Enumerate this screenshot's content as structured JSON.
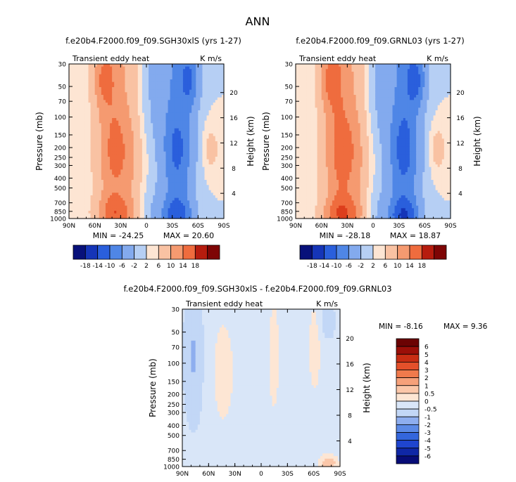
{
  "figure": {
    "title": "ANN"
  },
  "chart_data": [
    {
      "type": "heatmap",
      "title": "f.e20b4.F2000.f09_f09.SGH30xlS (yrs 1-27)",
      "subtitle_left": "Transient eddy heat",
      "subtitle_right": "K m/s",
      "xlabel": "",
      "ylabel": "Pressure (mb)",
      "ylabel_right": "Height (km)",
      "x_ticks": [
        "90N",
        "60N",
        "30N",
        "0",
        "30S",
        "60S",
        "90S"
      ],
      "y_ticks": [
        "30",
        "50",
        "70",
        "100",
        "150",
        "200",
        "250",
        "300",
        "400",
        "500",
        "700",
        "850",
        "1000"
      ],
      "y_right_ticks": [
        "20",
        "16",
        "12",
        "8",
        "4"
      ],
      "min_label": "MIN = -24.25",
      "max_label": "MAX = 20.60",
      "min": -24.25,
      "max": 20.6,
      "colorbar": {
        "orientation": "horizontal",
        "labels": [
          "-18",
          "-14",
          "-10",
          "-6",
          "-2",
          "2",
          "6",
          "10",
          "14",
          "18"
        ]
      }
    },
    {
      "type": "heatmap",
      "title": "f.e20b4.F2000.f09_f09.GRNL03 (yrs 1-27)",
      "subtitle_left": "Transient eddy heat",
      "subtitle_right": "K m/s",
      "xlabel": "",
      "ylabel": "Pressure (mb)",
      "ylabel_right": "Height (km)",
      "x_ticks": [
        "90N",
        "60N",
        "30N",
        "0",
        "30S",
        "60S",
        "90S"
      ],
      "y_ticks": [
        "30",
        "50",
        "70",
        "100",
        "150",
        "200",
        "250",
        "300",
        "400",
        "500",
        "700",
        "850",
        "1000"
      ],
      "y_right_ticks": [
        "20",
        "16",
        "12",
        "8",
        "4"
      ],
      "min_label": "MIN = -28.18",
      "max_label": "MAX = 18.87",
      "min": -28.18,
      "max": 18.87,
      "colorbar": {
        "orientation": "horizontal",
        "labels": [
          "-18",
          "-14",
          "-10",
          "-6",
          "-2",
          "2",
          "6",
          "10",
          "14",
          "18"
        ]
      }
    },
    {
      "type": "heatmap",
      "title": "f.e20b4.F2000.f09_f09.SGH30xlS - f.e20b4.F2000.f09_f09.GRNL03",
      "subtitle_left": "Transient eddy heat",
      "subtitle_right": "K m/s",
      "xlabel": "",
      "ylabel": "Pressure (mb)",
      "ylabel_right": "Height (km)",
      "x_ticks": [
        "90N",
        "60N",
        "30N",
        "0",
        "30S",
        "60S",
        "90S"
      ],
      "y_ticks": [
        "30",
        "50",
        "70",
        "100",
        "150",
        "200",
        "250",
        "300",
        "400",
        "500",
        "700",
        "850",
        "1000"
      ],
      "y_right_ticks": [
        "20",
        "16",
        "12",
        "8",
        "4"
      ],
      "min_label": "MIN = -8.16",
      "max_label": "MAX = 9.36",
      "min": -8.16,
      "max": 9.36,
      "colorbar": {
        "orientation": "vertical",
        "labels": [
          "6",
          "5",
          "4",
          "3",
          "2",
          "1",
          "0.5",
          "0",
          "-0.5",
          "-1",
          "-2",
          "-3",
          "-4",
          "-5",
          "-6"
        ]
      }
    }
  ],
  "colors": {
    "scale_12": [
      "#08117a",
      "#1535b8",
      "#2a5fdc",
      "#4f86e6",
      "#83aaee",
      "#b6cff4",
      "#d8e6f8",
      "#fde5d3",
      "#f9c2a3",
      "#f59a70",
      "#ef6c3e",
      "#dd3e1c",
      "#b61c0e",
      "#7e0505"
    ],
    "scale_diff": [
      "#070c77",
      "#0f27a6",
      "#1f45cf",
      "#3466dc",
      "#5c8ae6",
      "#8eaeef",
      "#c2d7f6",
      "#d9e6f8",
      "#fde6d4",
      "#fbc7a9",
      "#f6a17a",
      "#f07a4c",
      "#e4502a",
      "#c82d13",
      "#9b0f08",
      "#6b0303"
    ]
  }
}
